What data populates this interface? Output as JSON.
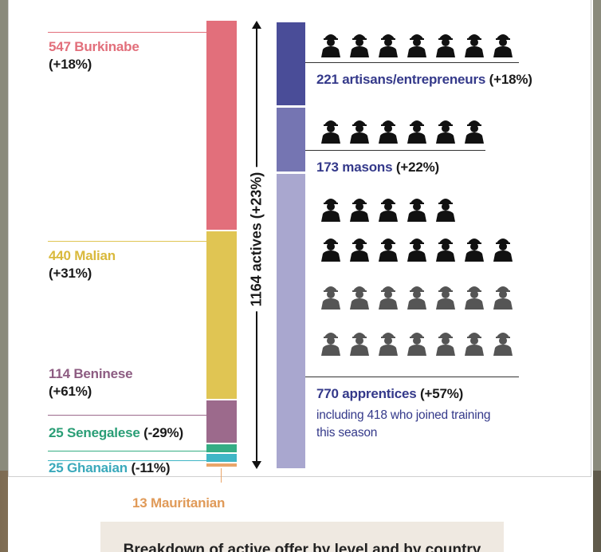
{
  "chart_data": {
    "type": "stacked-bar",
    "total_label": "1164 actives (+23%)",
    "total": 1164,
    "by_country": [
      {
        "name": "Burkinabe",
        "count": 547,
        "change": "(+18%)",
        "color": "#e26f7b",
        "text_color": "#e26f7b"
      },
      {
        "name": "Malian",
        "count": 440,
        "change": "(+31%)",
        "color": "#e0c553",
        "text_color": "#d9b93c"
      },
      {
        "name": "Beninese",
        "count": 114,
        "change": "(+61%)",
        "color": "#9c6a8c",
        "text_color": "#8d5c82"
      },
      {
        "name": "Senegalese",
        "count": 25,
        "change": "(-29%)",
        "color": "#35ad84",
        "text_color": "#2a9e76"
      },
      {
        "name": "Ghanaian",
        "count": 25,
        "change": "(-11%)",
        "color": "#3fb6c6",
        "text_color": "#3aa9bb"
      },
      {
        "name": "Mauritanian",
        "count": 13,
        "change": "",
        "color": "#e9a56a",
        "text_color": "#e09a58"
      }
    ],
    "by_level": [
      {
        "count": 221,
        "name": "artisans/entrepreneurs",
        "change": "(+18%)",
        "color": "#4a4d98",
        "icons": [
          7
        ]
      },
      {
        "count": 173,
        "name": "masons",
        "change": "(+22%)",
        "color": "#7575b2",
        "icons": [
          6
        ]
      },
      {
        "count": 770,
        "name": "apprentices",
        "change": "(+57%)",
        "color": "#a9a7cf",
        "icons": [
          5,
          7,
          7,
          7
        ],
        "note": "including 418 who joined training this season"
      }
    ],
    "caption": "Breakdown of active offer by level and by country"
  },
  "colors": {
    "level_text": "#34398a",
    "icon_dark": "#111111",
    "icon_gray": "#555555"
  }
}
